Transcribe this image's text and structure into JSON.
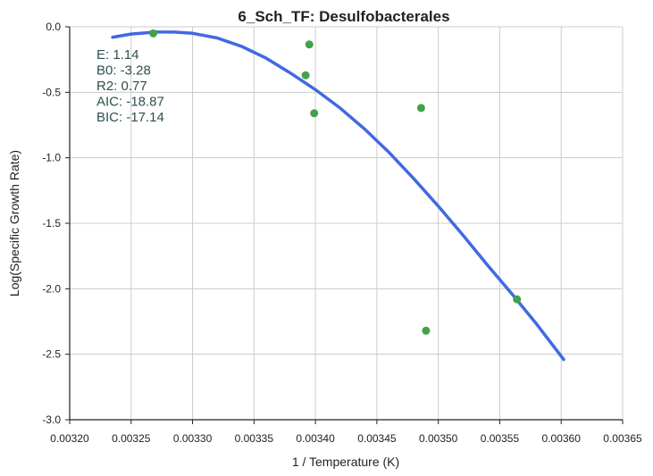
{
  "chart_data": {
    "type": "scatter",
    "title": "6_Sch_TF: Desulfobacterales",
    "xlabel": "1 / Temperature (K)",
    "ylabel": "Log(Specific Growth Rate)",
    "xlim": [
      0.0032,
      0.00365
    ],
    "ylim": [
      -3.0,
      0.0
    ],
    "x_ticks": [
      "0.00320",
      "0.00325",
      "0.00330",
      "0.00335",
      "0.00340",
      "0.00345",
      "0.00350",
      "0.00355",
      "0.00360",
      "0.00365"
    ],
    "y_ticks": [
      "0.0",
      "-0.5",
      "-1.0",
      "-1.5",
      "-2.0",
      "-2.5",
      "-3.0"
    ],
    "grid": true,
    "points": [
      {
        "x": 0.003268,
        "y": -0.05
      },
      {
        "x": 0.003395,
        "y": -0.135
      },
      {
        "x": 0.003392,
        "y": -0.37
      },
      {
        "x": 0.003399,
        "y": -0.66
      },
      {
        "x": 0.003486,
        "y": -0.62
      },
      {
        "x": 0.00349,
        "y": -2.32
      },
      {
        "x": 0.003564,
        "y": -2.08
      }
    ],
    "fit_curve": [
      {
        "x": 0.003235,
        "y": -0.08
      },
      {
        "x": 0.00325,
        "y": -0.055
      },
      {
        "x": 0.00327,
        "y": -0.04
      },
      {
        "x": 0.003285,
        "y": -0.04
      },
      {
        "x": 0.0033,
        "y": -0.05
      },
      {
        "x": 0.00332,
        "y": -0.085
      },
      {
        "x": 0.00334,
        "y": -0.15
      },
      {
        "x": 0.00336,
        "y": -0.24
      },
      {
        "x": 0.00338,
        "y": -0.355
      },
      {
        "x": 0.0034,
        "y": -0.48
      },
      {
        "x": 0.00342,
        "y": -0.62
      },
      {
        "x": 0.00344,
        "y": -0.78
      },
      {
        "x": 0.00346,
        "y": -0.96
      },
      {
        "x": 0.00348,
        "y": -1.16
      },
      {
        "x": 0.0035,
        "y": -1.37
      },
      {
        "x": 0.00352,
        "y": -1.59
      },
      {
        "x": 0.00354,
        "y": -1.82
      },
      {
        "x": 0.00356,
        "y": -2.04
      },
      {
        "x": 0.00358,
        "y": -2.27
      },
      {
        "x": 0.003602,
        "y": -2.54
      }
    ],
    "annotations": [
      "E:  1.14",
      "B0:  -3.28",
      "R2:  0.77",
      "AIC: -18.87",
      "BIC: -17.14"
    ],
    "colors": {
      "points": "#45a049",
      "curve": "#4169e1",
      "grid": "#cccccc",
      "axis": "#222222",
      "annotation": "#2f4f4f"
    }
  }
}
